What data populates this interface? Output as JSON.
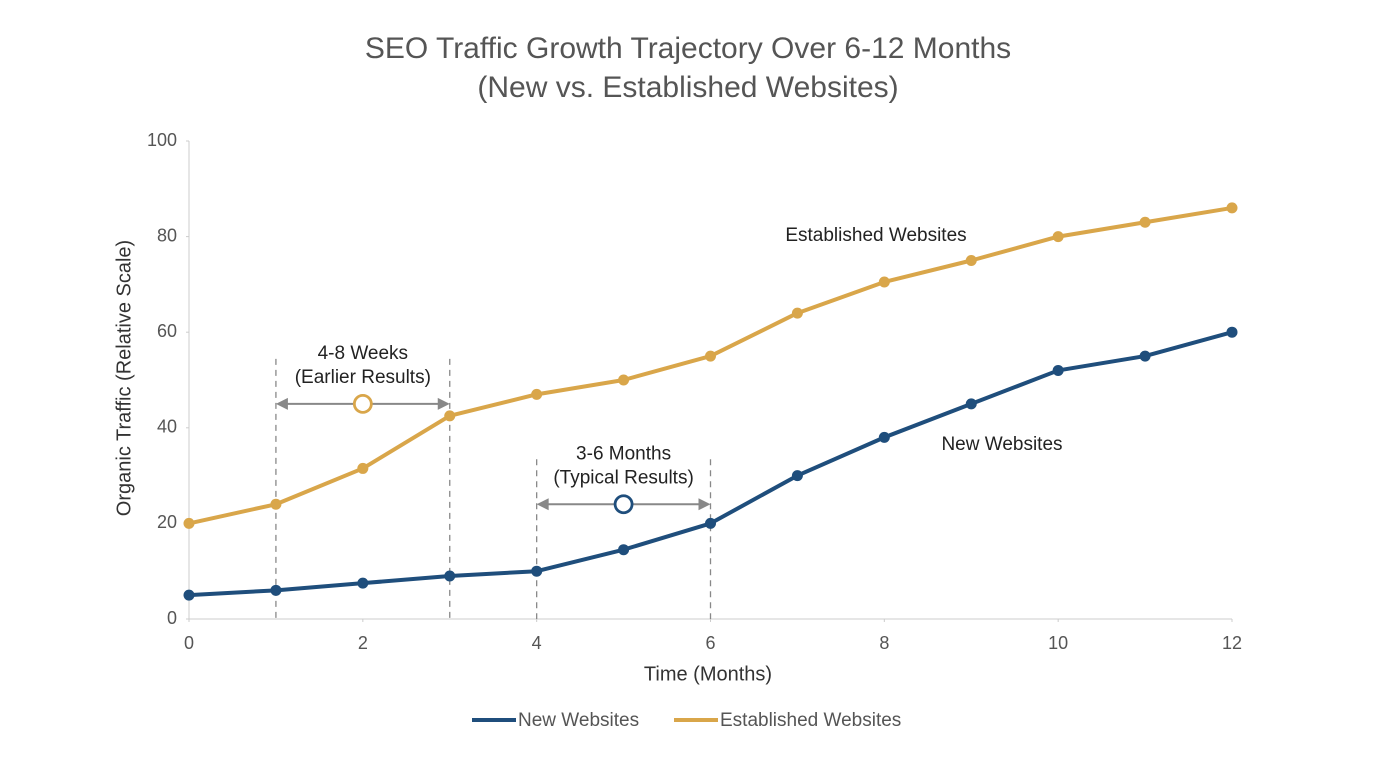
{
  "chart_data": {
    "type": "line",
    "title": [
      "SEO Traffic Growth Trajectory Over 6-12 Months",
      "(New vs. Established Websites)"
    ],
    "x_label": "Time (Months)",
    "y_label": "Organic Traffic (Relative Scale)",
    "x": [
      0,
      1,
      2,
      3,
      4,
      5,
      6,
      7,
      8,
      9,
      10,
      11,
      12
    ],
    "series": [
      {
        "name": "New Websites",
        "color": "#1f4e7c",
        "values": [
          5,
          6,
          7.5,
          9,
          10,
          14.5,
          20,
          30,
          38,
          45,
          52,
          55,
          60
        ]
      },
      {
        "name": "Established Websites",
        "color": "#d9a64a",
        "values": [
          20,
          24,
          31.5,
          42.5,
          47,
          50,
          55,
          64,
          70.5,
          75,
          80,
          83,
          86
        ]
      }
    ],
    "xlim": [
      0,
      12
    ],
    "xticks": [
      0,
      2,
      4,
      6,
      8,
      10,
      12
    ],
    "ylim": [
      0,
      100
    ],
    "yticks": [
      0,
      20,
      40,
      60,
      80,
      100
    ],
    "grid": false,
    "legend": "bottom",
    "annotations": [
      {
        "lines": [
          "4-8 Weeks",
          "(Earlier Results)"
        ],
        "x": [
          1,
          3
        ],
        "y": 45,
        "color": "#d9a64a"
      },
      {
        "lines": [
          "3-6 Months",
          "(Typical Results)"
        ],
        "x": [
          4,
          6
        ],
        "y": 24,
        "color": "#1f4e7c"
      }
    ]
  }
}
